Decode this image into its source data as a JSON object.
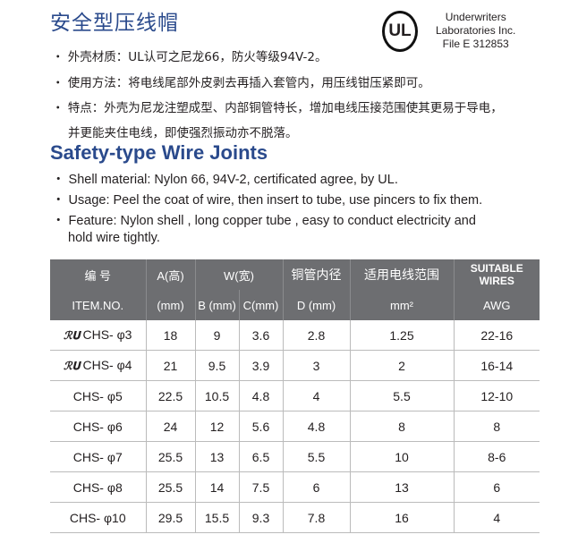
{
  "cn": {
    "title": "安全型压线帽",
    "lines": [
      "・ 外壳材质：UL认可之尼龙66，防火等级94V-2。",
      "・ 使用方法：将电线尾部外皮剥去再插入套管内，用压线钳压紧即可。",
      "・ 特点：外壳为尼龙注塑成型、内部铜管特长，增加电线压接范围使其更易于导电，",
      "并更能夹住电线，即使强烈振动亦不脱落。"
    ]
  },
  "ul": {
    "logo": "UL",
    "lines": [
      "Underwriters",
      "Laboratories Inc.",
      "File E 312853"
    ]
  },
  "en": {
    "title": "Safety-type Wire Joints",
    "lines": [
      "・ Shell material: Nylon 66, 94V-2, certificated  agree, by UL.",
      "・ Usage: Peel the coat of wire, then insert to tube, use pincers to fix them.",
      "・ Feature: Nylon shell , long  copper tube , easy  to  conduct electricity and",
      "hold wire tightly."
    ]
  },
  "table": {
    "header1": [
      "编 号",
      "A(高)",
      "W(宽)",
      "铜管内径",
      "适用电线范围",
      "SUITABLE WIRES"
    ],
    "header2": [
      "ITEM.NO.",
      "(mm)",
      "B (mm)",
      "C(mm)",
      "D (mm)",
      "mm²",
      "AWG"
    ],
    "ul_mark": "ℛ𝐔",
    "rows": [
      [
        "CHS- φ3",
        "18",
        "9",
        "3.6",
        "2.8",
        "1.25",
        "22-16"
      ],
      [
        "CHS- φ4",
        "21",
        "9.5",
        "3.9",
        "3",
        "2",
        "16-14"
      ],
      [
        "CHS- φ5",
        "22.5",
        "10.5",
        "4.8",
        "4",
        "5.5",
        "12-10"
      ],
      [
        "CHS- φ6",
        "24",
        "12",
        "5.6",
        "4.8",
        "8",
        "8"
      ],
      [
        "CHS- φ7",
        "25.5",
        "13",
        "6.5",
        "5.5",
        "10",
        "8-6"
      ],
      [
        "CHS- φ8",
        "25.5",
        "14",
        "7.5",
        "6",
        "13",
        "6"
      ],
      [
        "CHS- φ10",
        "29.5",
        "15.5",
        "9.3",
        "7.8",
        "16",
        "4"
      ]
    ]
  }
}
